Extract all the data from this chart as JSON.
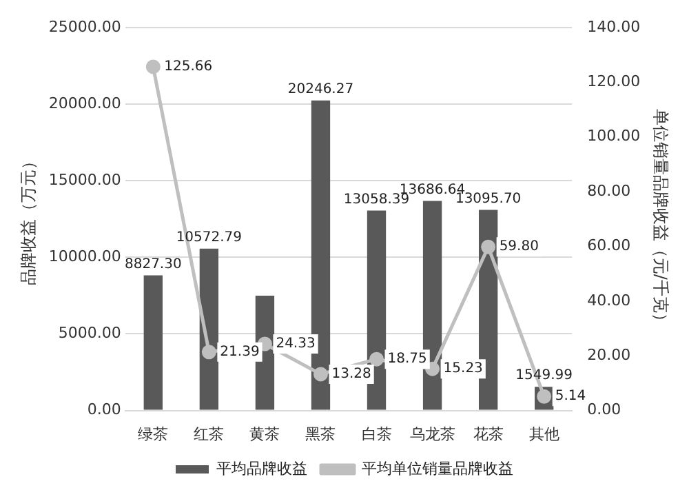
{
  "chart_data": {
    "type": "bar",
    "categories": [
      "绿茶",
      "红茶",
      "黄茶",
      "黑茶",
      "白茶",
      "乌龙茶",
      "花茶",
      "其他"
    ],
    "ylabel": "品牌收益（万元）",
    "y2label": "单位销量品牌收益（元/千克）",
    "series": [
      {
        "name": "平均品牌收益",
        "color": "#595959",
        "values": [
          8827.3,
          10572.79,
          7500,
          20246.27,
          13058.39,
          13686.64,
          13095.7,
          1549.99
        ],
        "value_labels": [
          "8827.30",
          "10572.79",
          null,
          "20246.27",
          "13058.39",
          "13686.64",
          "13095.70",
          "1549.99"
        ]
      },
      {
        "name": "平均单位销量品牌收益",
        "type": "line",
        "axis": "y2",
        "color": "#bfbfbf",
        "marker": "circle",
        "values": [
          125.66,
          21.39,
          24.33,
          13.28,
          18.75,
          15.23,
          59.8,
          5.14
        ],
        "value_labels": [
          "125.66",
          "21.39",
          "24.33",
          "13.28",
          "18.75",
          "15.23",
          "59.80",
          "5.14"
        ]
      }
    ],
    "ylim": [
      0,
      25000
    ],
    "yticks": [
      {
        "value": 0,
        "label": "0.00"
      },
      {
        "value": 5000,
        "label": "5000.00"
      },
      {
        "value": 10000,
        "label": "10000.00"
      },
      {
        "value": 15000,
        "label": "15000.00"
      },
      {
        "value": 20000,
        "label": "20000.00"
      },
      {
        "value": 25000,
        "label": "25000.00"
      }
    ],
    "y2lim": [
      0,
      140
    ],
    "y2ticks": [
      {
        "value": 0,
        "label": "0.00"
      },
      {
        "value": 20,
        "label": "20.00"
      },
      {
        "value": 40,
        "label": "40.00"
      },
      {
        "value": 60,
        "label": "60.00"
      },
      {
        "value": 80,
        "label": "80.00"
      },
      {
        "value": 100,
        "label": "100.00"
      },
      {
        "value": 120,
        "label": "120.00"
      },
      {
        "value": 140,
        "label": "140.00"
      }
    ],
    "grid": "y",
    "legend": "bottom"
  }
}
